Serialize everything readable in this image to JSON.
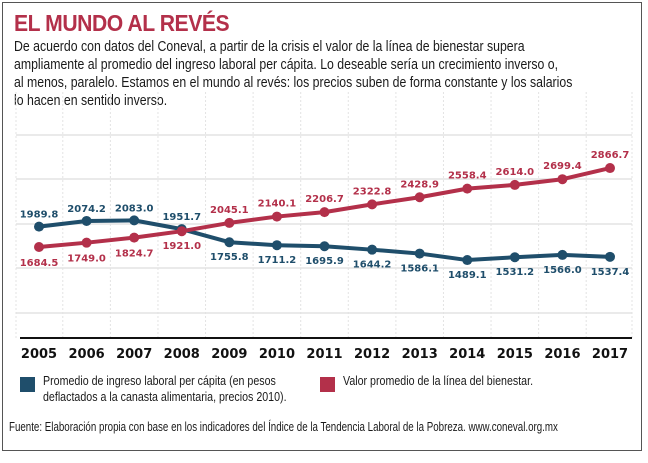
{
  "header": {
    "title": "EL MUNDO AL REVÉS",
    "intro_lines": [
      "De acuerdo con datos del Coneval, a partir de la crisis el valor de la línea de bienestar supera",
      "ampliamente al promedio del ingreso laboral per cápita. Lo deseable sería un crecimiento inverso o,",
      "al menos, paralelo. Estamos en el mundo al revés: los precios suben de forma constante y los salarios",
      "lo hacen en sentido inverso."
    ]
  },
  "legend": [
    {
      "label_lines": [
        "Promedio de ingreso laboral per cápita (en pesos",
        "deflactados a la canasta alimentaria, precios 2010)."
      ],
      "color": "#1f4e6b"
    },
    {
      "label_lines": [
        "Valor promedio de la línea del bienestar."
      ],
      "color": "#b3304a"
    }
  ],
  "source": "Fuente: Elaboración propia con base en los indicadores del Índice de la Tendencia Laboral de la Pobreza. www.coneval.org.mx",
  "colors": {
    "title": "#b3304a",
    "income": "#1f4e6b",
    "welfare": "#b3304a",
    "grid": "#e3e3e3",
    "axis": "#111111"
  },
  "chart_data": {
    "type": "line",
    "title": "EL MUNDO AL REVÉS",
    "xlabel": "",
    "ylabel": "",
    "categories": [
      "2005",
      "2006",
      "2007",
      "2008",
      "2009",
      "2010",
      "2011",
      "2012",
      "2013",
      "2014",
      "2015",
      "2016",
      "2017"
    ],
    "series": [
      {
        "name": "Promedio de ingreso laboral per cápita (en pesos deflactados a la canasta alimentaria, precios 2010).",
        "color": "#1f4e6b",
        "values": [
          1989.8,
          2074.2,
          2083.0,
          1951.7,
          1755.8,
          1711.2,
          1695.9,
          1644.2,
          1586.1,
          1489.1,
          1531.2,
          1566.0,
          1537.4
        ],
        "labels": [
          "1989.8",
          "2074.2",
          "2083.0",
          "1951.7",
          "1755.8",
          "1711.2",
          "1695.9",
          "1644.2",
          "1586.1",
          "1489.1",
          "1531.2",
          "1566.0",
          "1537.4"
        ]
      },
      {
        "name": "Valor promedio de la línea del bienestar.",
        "color": "#b3304a",
        "values": [
          1684.5,
          1749.0,
          1824.7,
          1921.0,
          2045.1,
          2140.1,
          2206.7,
          2322.8,
          2428.9,
          2558.4,
          2614.0,
          2699.4,
          2866.7
        ],
        "labels": [
          "1684.5",
          "1749.0",
          "1824.7",
          "1921.0",
          "2045.1",
          "2140.1",
          "2206.7",
          "2322.8",
          "2428.9",
          "2558.4",
          "2614.0",
          "2699.4",
          "2866.7"
        ]
      }
    ],
    "ylim": [
      322,
      4005
    ],
    "grid": true,
    "y_ticks_shown": false,
    "legend_position": "bottom"
  }
}
